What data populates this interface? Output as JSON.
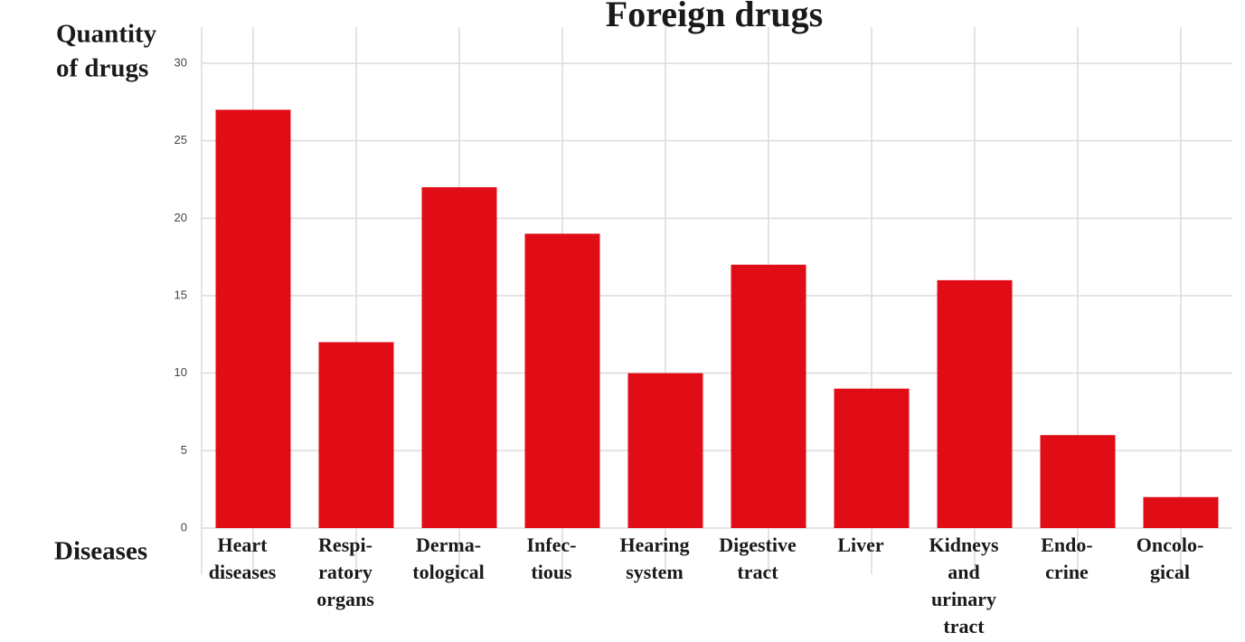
{
  "chart_data": {
    "type": "bar",
    "title": "Foreign drugs",
    "y_label": [
      "Quantity",
      "of drugs"
    ],
    "x_label": "Diseases",
    "categories": [
      [
        "Heart",
        "diseases"
      ],
      [
        "Respi-",
        "ratory",
        "organs"
      ],
      [
        "Derma-",
        "tological"
      ],
      [
        "Infec-",
        "tious"
      ],
      [
        "Hearing",
        "system"
      ],
      [
        "Digestive",
        "tract"
      ],
      [
        "Liver"
      ],
      [
        "Kidneys",
        "and",
        "urinary",
        "tract"
      ],
      [
        "Endo-",
        "crine"
      ],
      [
        "Oncolo-",
        "gical"
      ]
    ],
    "values": [
      27,
      12,
      22,
      19,
      10,
      17,
      9,
      16,
      6,
      2
    ],
    "color": "#e00d16",
    "ylim": [
      0,
      30
    ],
    "yticks": [
      0,
      5,
      10,
      15,
      20,
      25,
      30
    ],
    "grid": true
  }
}
